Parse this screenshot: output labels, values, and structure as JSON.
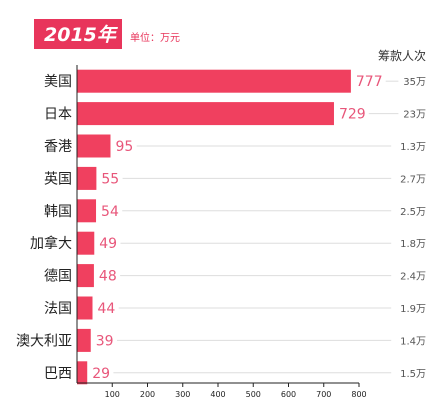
{
  "chart_data": {
    "type": "bar",
    "orientation": "horizontal",
    "title": "2015年",
    "unit_note": "单位：万元",
    "right_column_header": "筹款人次",
    "categories": [
      "美国",
      "日本",
      "香港",
      "英国",
      "韩国",
      "加拿大",
      "德国",
      "法国",
      "澳大利亚",
      "巴西"
    ],
    "values": [
      777,
      729,
      95,
      55,
      54,
      49,
      48,
      44,
      39,
      29
    ],
    "value_labels": [
      "777",
      "729",
      "95",
      "55",
      "54",
      "49",
      "48",
      "44",
      "39",
      "29"
    ],
    "right_labels": [
      "35万",
      "23万",
      "1.3万",
      "2.7万",
      "2.5万",
      "1.8万",
      "2.4万",
      "1.9万",
      "1.4万",
      "1.5万"
    ],
    "xticks": [
      100,
      200,
      300,
      400,
      500,
      600,
      700,
      800
    ],
    "xlim": [
      0,
      800
    ],
    "grid": true,
    "colors": {
      "bar": "#f0405f",
      "badge": "#e8355b",
      "value_label": "#e8567a",
      "gridline": "#dddddd"
    }
  }
}
